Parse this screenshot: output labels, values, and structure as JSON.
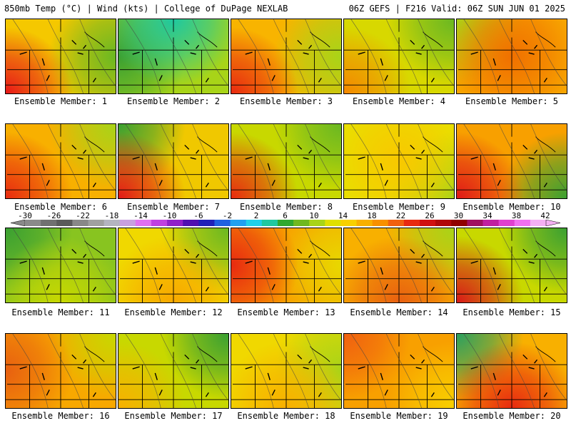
{
  "header": {
    "left": "850mb Temp (°C) | Wind (kts) | College of DuPage NEXLAB",
    "right": "06Z GEFS | F216 Valid: 06Z SUN JUN 01 2025"
  },
  "panels": [
    {
      "label": "Ensemble Member: 1",
      "base": "#f5c800",
      "hot": "#e81818",
      "hotPos": "sw",
      "cool": "#6ab822",
      "coolPos": "e"
    },
    {
      "label": "Ensemble Member: 2",
      "base": "#a8d418",
      "hot": "#1ec8a0",
      "hotPos": "n",
      "cool": "#3aa032",
      "coolPos": "w"
    },
    {
      "label": "Ensemble Member: 3",
      "base": "#f8b400",
      "hot": "#e82a10",
      "hotPos": "sw",
      "cool": "#a8d418",
      "coolPos": "e"
    },
    {
      "label": "Ensemble Member: 4",
      "base": "#d8d800",
      "hot": "#f48800",
      "hotPos": "sw",
      "cool": "#6ab822",
      "coolPos": "ne"
    },
    {
      "label": "Ensemble Member: 5",
      "base": "#f8a800",
      "hot": "#f07000",
      "hotPos": "c",
      "cool": "#a8d418",
      "coolPos": "nw"
    },
    {
      "label": "Ensemble Member: 6",
      "base": "#f8b000",
      "hot": "#e82a10",
      "hotPos": "sw",
      "cool": "#a8d418",
      "coolPos": "ne"
    },
    {
      "label": "Ensemble Member: 7",
      "base": "#f0c800",
      "hot": "#e01818",
      "hotPos": "sw",
      "cool": "#3aa032",
      "coolPos": "nw"
    },
    {
      "label": "Ensemble Member: 8",
      "base": "#c8d800",
      "hot": "#e82a10",
      "hotPos": "sw",
      "cool": "#6ab822",
      "coolPos": "ne"
    },
    {
      "label": "Ensemble Member: 9",
      "base": "#e8e000",
      "hot": "#f8c800",
      "hotPos": "c",
      "cool": "#a8d418",
      "coolPos": "se"
    },
    {
      "label": "Ensemble Member: 10",
      "base": "#f8a000",
      "hot": "#e01818",
      "hotPos": "sw",
      "cool": "#3aa032",
      "coolPos": "se"
    },
    {
      "label": "Ensemble Member: 11",
      "base": "#88c420",
      "hot": "#c8d800",
      "hotPos": "s",
      "cool": "#3aa032",
      "coolPos": "nw"
    },
    {
      "label": "Ensemble Member: 12",
      "base": "#f0d800",
      "hot": "#f8a800",
      "hotPos": "s",
      "cool": "#6ab822",
      "coolPos": "ne"
    },
    {
      "label": "Ensemble Member: 13",
      "base": "#f8a000",
      "hot": "#e82a10",
      "hotPos": "w",
      "cool": "#e8d800",
      "coolPos": "e"
    },
    {
      "label": "Ensemble Member: 14",
      "base": "#f8b000",
      "hot": "#e86010",
      "hotPos": "s",
      "cool": "#a8d418",
      "coolPos": "ne"
    },
    {
      "label": "Ensemble Member: 15",
      "base": "#c8d800",
      "hot": "#d81818",
      "hotPos": "sw",
      "cool": "#3aa032",
      "coolPos": "ne"
    },
    {
      "label": "Ensemble Member: 16",
      "base": "#f8a800",
      "hot": "#e86010",
      "hotPos": "w",
      "cool": "#c8d800",
      "coolPos": "ne"
    },
    {
      "label": "Ensemble Member: 17",
      "base": "#c8d800",
      "hot": "#f8b000",
      "hotPos": "sw",
      "cool": "#3aa032",
      "coolPos": "ne"
    },
    {
      "label": "Ensemble Member: 18",
      "base": "#f0d800",
      "hot": "#f8b000",
      "hotPos": "s",
      "cool": "#a8d418",
      "coolPos": "e"
    },
    {
      "label": "Ensemble Member: 19",
      "base": "#f8a000",
      "hot": "#f06010",
      "hotPos": "nw",
      "cool": "#f8d000",
      "coolPos": "se"
    },
    {
      "label": "Ensemble Member: 20",
      "base": "#f8b000",
      "hot": "#e82a10",
      "hotPos": "s",
      "cool": "#2aa060",
      "coolPos": "nw"
    }
  ],
  "colorbar": {
    "labels": [
      "-30",
      "-26",
      "-22",
      "-18",
      "-14",
      "-10",
      "-6",
      "-2",
      "2",
      "6",
      "10",
      "14",
      "18",
      "22",
      "26",
      "30",
      "34",
      "38",
      "42"
    ],
    "colors": [
      "#8a8a8a",
      "#707070",
      "#5a5a5a",
      "#888888",
      "#a0a0a0",
      "#b4b4c0",
      "#c8a0e0",
      "#e070f0",
      "#c040e0",
      "#9020c8",
      "#5010b0",
      "#2020b8",
      "#2060e0",
      "#20a0f0",
      "#20d0e8",
      "#20c8a0",
      "#30a830",
      "#70b820",
      "#a8d418",
      "#e0e000",
      "#f8d000",
      "#f8b000",
      "#f89000",
      "#f06010",
      "#e82a10",
      "#d01010",
      "#b00808",
      "#900000",
      "#a01060",
      "#c020a0",
      "#e040d0",
      "#f070f0",
      "#f4b0f4"
    ]
  }
}
